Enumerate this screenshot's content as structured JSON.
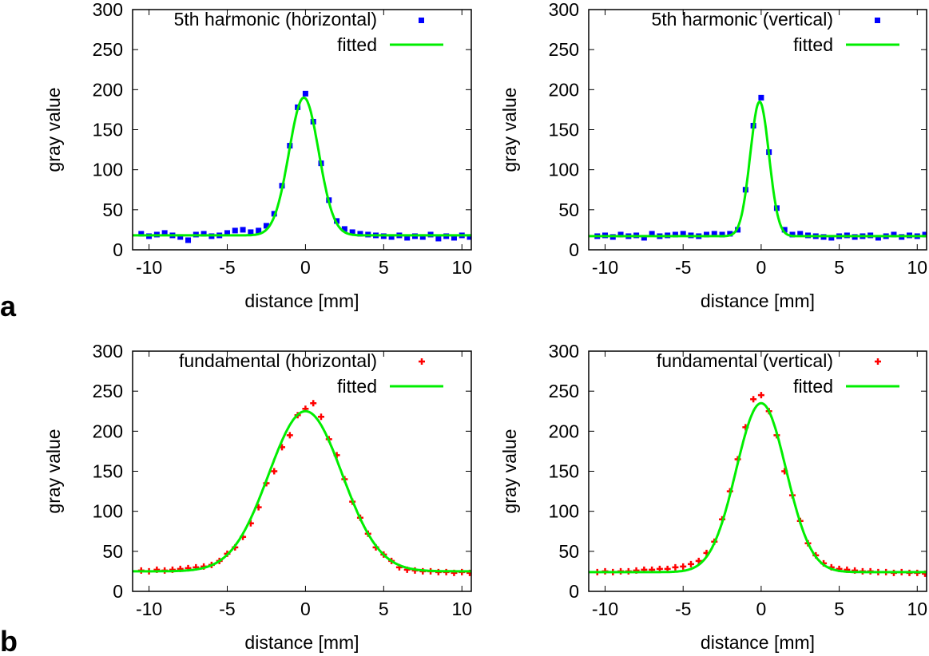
{
  "chart_data": [
    {
      "type": "scatter",
      "panel": "a",
      "xlabel": "distance [mm]",
      "ylabel": "gray value",
      "xlim": [
        -11.05,
        10.6
      ],
      "ylim": [
        0,
        300
      ],
      "xticks": [
        -10,
        -5,
        0,
        5,
        10
      ],
      "yticks": [
        0,
        50,
        100,
        150,
        200,
        250,
        300
      ],
      "legend_position": "top-right",
      "grid": false,
      "series": [
        {
          "name": "5th harmonic (horizontal)",
          "kind": "points",
          "color": "#0000ff",
          "marker": "square",
          "x": [
            -10.5,
            -10,
            -9.5,
            -9,
            -8.5,
            -8,
            -7.5,
            -7,
            -6.5,
            -6,
            -5.5,
            -5,
            -4.5,
            -4,
            -3.5,
            -3,
            -2.5,
            -2,
            -1.5,
            -1,
            -0.5,
            0,
            0.5,
            1,
            1.5,
            2,
            2.5,
            3,
            3.5,
            4,
            4.5,
            5,
            5.5,
            6,
            6.5,
            7,
            7.5,
            8,
            8.5,
            9,
            9.5,
            10,
            10.5
          ],
          "y": [
            20,
            17,
            19,
            21,
            18,
            16,
            12,
            19,
            20,
            17,
            18,
            21,
            24,
            25,
            22,
            24,
            30,
            45,
            80,
            130,
            178,
            195,
            160,
            108,
            62,
            36,
            26,
            22,
            20,
            19,
            18,
            17,
            16,
            18,
            15,
            17,
            16,
            19,
            14,
            17,
            15,
            18,
            16
          ]
        },
        {
          "name": "fitted",
          "kind": "gaussian-fit",
          "color": "#00ee00",
          "baseline": 18,
          "amplitude": 172,
          "center": -0.1,
          "sigma": 0.95
        }
      ]
    },
    {
      "type": "scatter",
      "panel": "a",
      "xlabel": "distance [mm]",
      "ylabel": "gray value",
      "xlim": [
        -11.05,
        10.6
      ],
      "ylim": [
        0,
        300
      ],
      "xticks": [
        -10,
        -5,
        0,
        5,
        10
      ],
      "yticks": [
        0,
        50,
        100,
        150,
        200,
        250,
        300
      ],
      "legend_position": "top-right",
      "grid": false,
      "series": [
        {
          "name": "5th harmonic (vertical)",
          "kind": "points",
          "color": "#0000ff",
          "marker": "square",
          "x": [
            -10.5,
            -10,
            -9.5,
            -9,
            -8.5,
            -8,
            -7.5,
            -7,
            -6.5,
            -6,
            -5.5,
            -5,
            -4.5,
            -4,
            -3.5,
            -3,
            -2.5,
            -2,
            -1.5,
            -1,
            -0.5,
            0,
            0.5,
            1,
            1.5,
            2,
            2.5,
            3,
            3.5,
            4,
            4.5,
            5,
            5.5,
            6,
            6.5,
            7,
            7.5,
            8,
            8.5,
            9,
            9.5,
            10,
            10.5
          ],
          "y": [
            17,
            18,
            16,
            19,
            17,
            18,
            15,
            20,
            17,
            18,
            19,
            20,
            18,
            17,
            19,
            20,
            19,
            20,
            25,
            75,
            155,
            190,
            122,
            52,
            25,
            19,
            20,
            18,
            17,
            16,
            15,
            17,
            18,
            16,
            17,
            18,
            15,
            17,
            19,
            16,
            18,
            17,
            19
          ]
        },
        {
          "name": "fitted",
          "kind": "gaussian-fit",
          "color": "#00ee00",
          "baseline": 17,
          "amplitude": 168,
          "center": -0.1,
          "sigma": 0.6
        }
      ]
    },
    {
      "type": "scatter",
      "panel": "b",
      "xlabel": "distance [mm]",
      "ylabel": "gray value",
      "xlim": [
        -11.05,
        10.6
      ],
      "ylim": [
        0,
        300
      ],
      "xticks": [
        -10,
        -5,
        0,
        5,
        10
      ],
      "yticks": [
        0,
        50,
        100,
        150,
        200,
        250,
        300
      ],
      "legend_position": "top-right",
      "grid": false,
      "series": [
        {
          "name": "fundamental (horizontal)",
          "kind": "points",
          "color": "#ff0000",
          "marker": "plus",
          "x": [
            -10.5,
            -10,
            -9.5,
            -9,
            -8.5,
            -8,
            -7.5,
            -7,
            -6.5,
            -6,
            -5.5,
            -5,
            -4.5,
            -4,
            -3.5,
            -3,
            -2.5,
            -2,
            -1.5,
            -1,
            -0.5,
            0,
            0.5,
            1,
            1.5,
            2,
            2.5,
            3,
            3.5,
            4,
            4.5,
            5,
            5.5,
            6,
            6.5,
            7,
            7.5,
            8,
            8.5,
            9,
            9.5,
            10,
            10.5
          ],
          "y": [
            26,
            25,
            27,
            26,
            27,
            28,
            29,
            30,
            31,
            33,
            38,
            47,
            55,
            68,
            85,
            105,
            135,
            150,
            180,
            195,
            220,
            228,
            235,
            218,
            190,
            170,
            140,
            112,
            92,
            72,
            55,
            46,
            38,
            30,
            27,
            26,
            25,
            25,
            24,
            24,
            23,
            24,
            23
          ]
        },
        {
          "name": "fitted",
          "kind": "gaussian-fit",
          "color": "#00ee00",
          "baseline": 25,
          "amplitude": 200,
          "center": 0,
          "sigma": 2.35
        }
      ]
    },
    {
      "type": "scatter",
      "panel": "b",
      "xlabel": "distance [mm]",
      "ylabel": "gray value",
      "xlim": [
        -11.05,
        10.6
      ],
      "ylim": [
        0,
        300
      ],
      "xticks": [
        -10,
        -5,
        0,
        5,
        10
      ],
      "yticks": [
        0,
        50,
        100,
        150,
        200,
        250,
        300
      ],
      "legend_position": "top-right",
      "grid": false,
      "series": [
        {
          "name": "fundamental (vertical)",
          "kind": "points",
          "color": "#ff0000",
          "marker": "plus",
          "x": [
            -10.5,
            -10,
            -9.5,
            -9,
            -8.5,
            -8,
            -7.5,
            -7,
            -6.5,
            -6,
            -5.5,
            -5,
            -4.5,
            -4,
            -3.5,
            -3,
            -2.5,
            -2,
            -1.5,
            -1,
            -0.5,
            0,
            0.5,
            1,
            1.5,
            2,
            2.5,
            3,
            3.5,
            4,
            4.5,
            5,
            5.5,
            6,
            6.5,
            7,
            7.5,
            8,
            8.5,
            9,
            9.5,
            10,
            10.5
          ],
          "y": [
            24,
            25,
            24,
            25,
            25,
            26,
            27,
            27,
            28,
            28,
            30,
            31,
            34,
            38,
            48,
            62,
            90,
            125,
            165,
            205,
            240,
            245,
            225,
            195,
            150,
            120,
            88,
            60,
            45,
            35,
            30,
            28,
            27,
            26,
            25,
            25,
            24,
            24,
            23,
            24,
            23,
            23,
            22
          ]
        },
        {
          "name": "fitted",
          "kind": "gaussian-fit",
          "color": "#00ee00",
          "baseline": 24,
          "amplitude": 211,
          "center": 0,
          "sigma": 1.6
        }
      ]
    }
  ],
  "panel_labels": [
    "a",
    "b"
  ]
}
